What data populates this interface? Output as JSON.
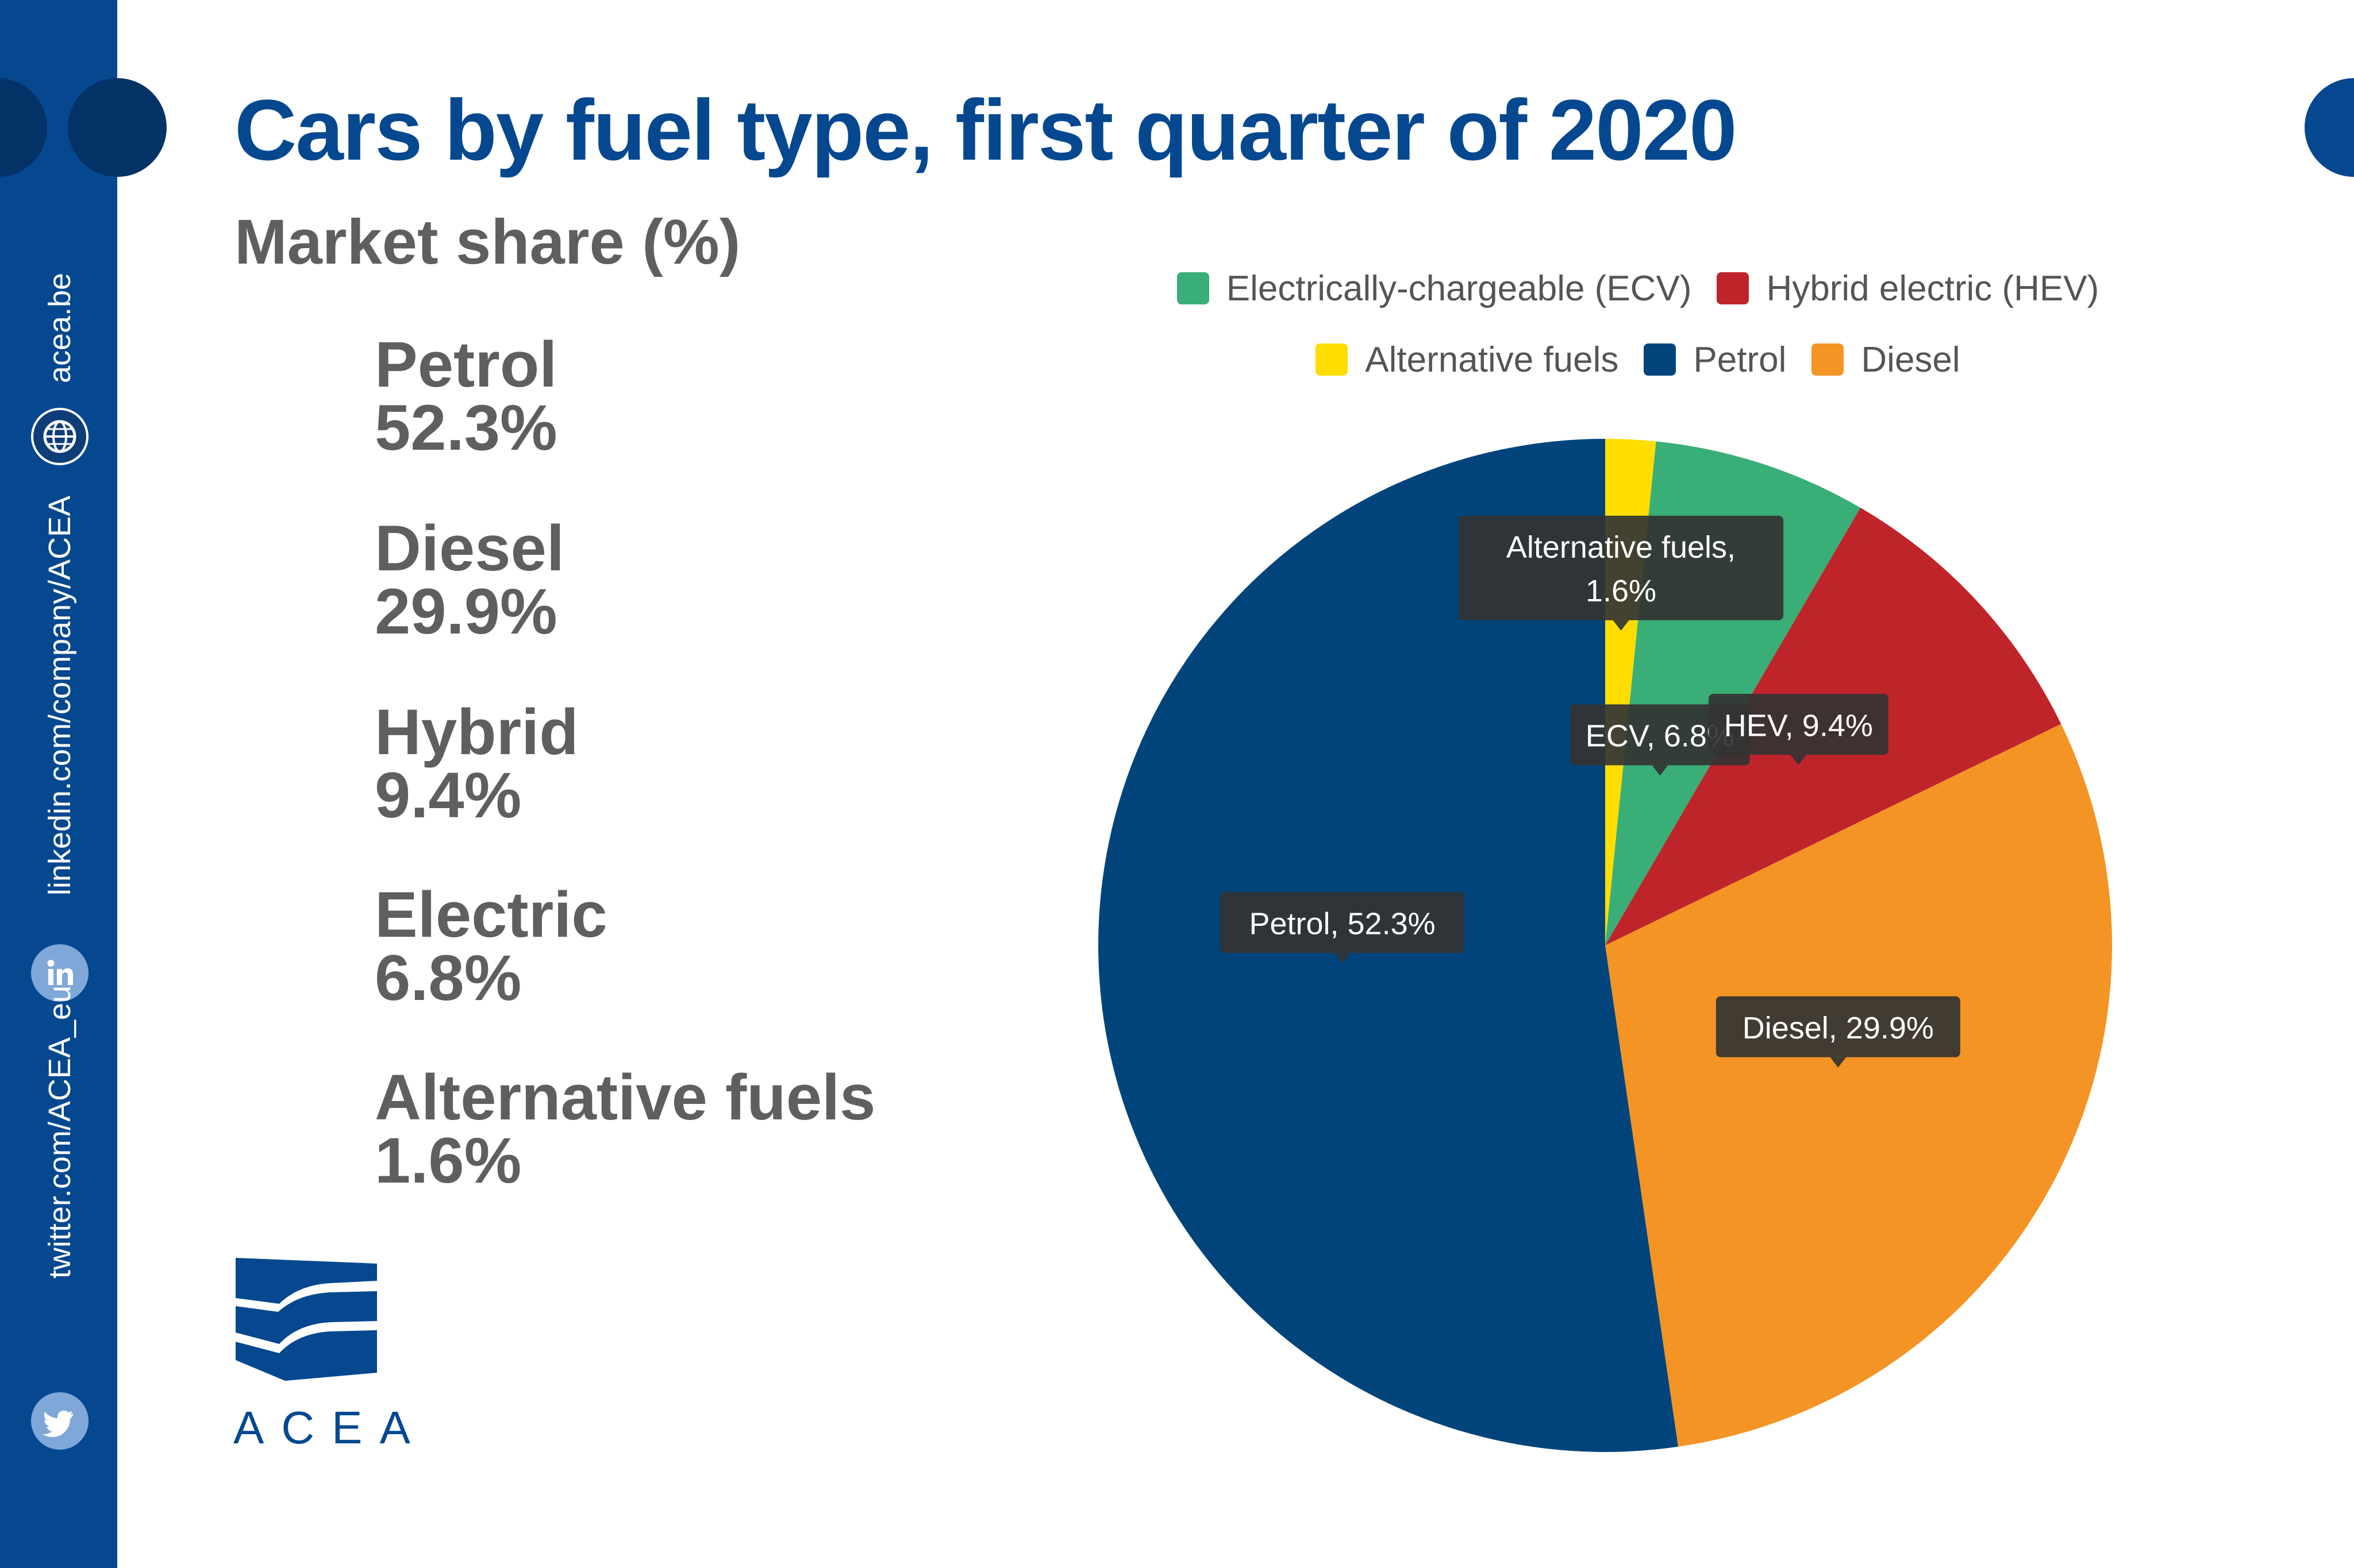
{
  "title": "Cars by fuel type, first quarter of 2020",
  "subtitle": "Market share (%)",
  "stats": [
    {
      "label": "Petrol",
      "value": "52.3%"
    },
    {
      "label": "Diesel",
      "value": "29.9%"
    },
    {
      "label": "Hybrid",
      "value": "9.4%"
    },
    {
      "label": "Electric",
      "value": "6.8%"
    },
    {
      "label": "Alternative fuels",
      "value": "1.6%"
    }
  ],
  "sidebar": {
    "website": "acea.be",
    "linkedin": "linkedin.com/company/ACEA",
    "twitter": "twitter.com/ACEA_eu",
    "icons": [
      "globe-icon",
      "linkedin-icon",
      "twitter-icon"
    ]
  },
  "logo": {
    "text": "ACEA"
  },
  "colors": {
    "brand": "#05488f",
    "petrol": "#00447b",
    "diesel": "#f39424",
    "hev": "#c0242b",
    "ecv": "#3aae77",
    "alternative": "#ffdd00",
    "tooltip": "#333333",
    "text_gray": "#5f5f5f"
  },
  "chart_data": {
    "type": "pie",
    "title": "Cars by fuel type, first quarter of 2020",
    "unit": "%",
    "start": "12 o'clock, clockwise",
    "slices": [
      {
        "name": "Alternative fuels",
        "short": "Alternative fuels",
        "value": 1.6,
        "color": "#ffdd00",
        "tooltip": [
          "Alternative fuels,",
          "1.6%"
        ]
      },
      {
        "name": "Electrically-chargeable (ECV)",
        "short": "ECV",
        "value": 6.8,
        "color": "#3aae77",
        "tooltip": [
          "ECV, 6.8%"
        ]
      },
      {
        "name": "Hybrid electric (HEV)",
        "short": "HEV",
        "value": 9.4,
        "color": "#c0242b",
        "tooltip": [
          "HEV, 9.4%"
        ]
      },
      {
        "name": "Diesel",
        "short": "Diesel",
        "value": 29.9,
        "color": "#f39424",
        "tooltip": [
          "Diesel, 29.9%"
        ]
      },
      {
        "name": "Petrol",
        "short": "Petrol",
        "value": 52.3,
        "color": "#00447b",
        "tooltip": [
          "Petrol, 52.3%"
        ]
      }
    ],
    "legend": {
      "position": "top",
      "rows": [
        [
          {
            "label": "Electrically-chargeable (ECV)",
            "color": "#3aae77"
          },
          {
            "label": "Hybrid electric (HEV)",
            "color": "#c0242b"
          }
        ],
        [
          {
            "label": "Alternative fuels",
            "color": "#ffdd00"
          },
          {
            "label": "Petrol",
            "color": "#00447b"
          },
          {
            "label": "Diesel",
            "color": "#f39424"
          }
        ]
      ]
    }
  }
}
